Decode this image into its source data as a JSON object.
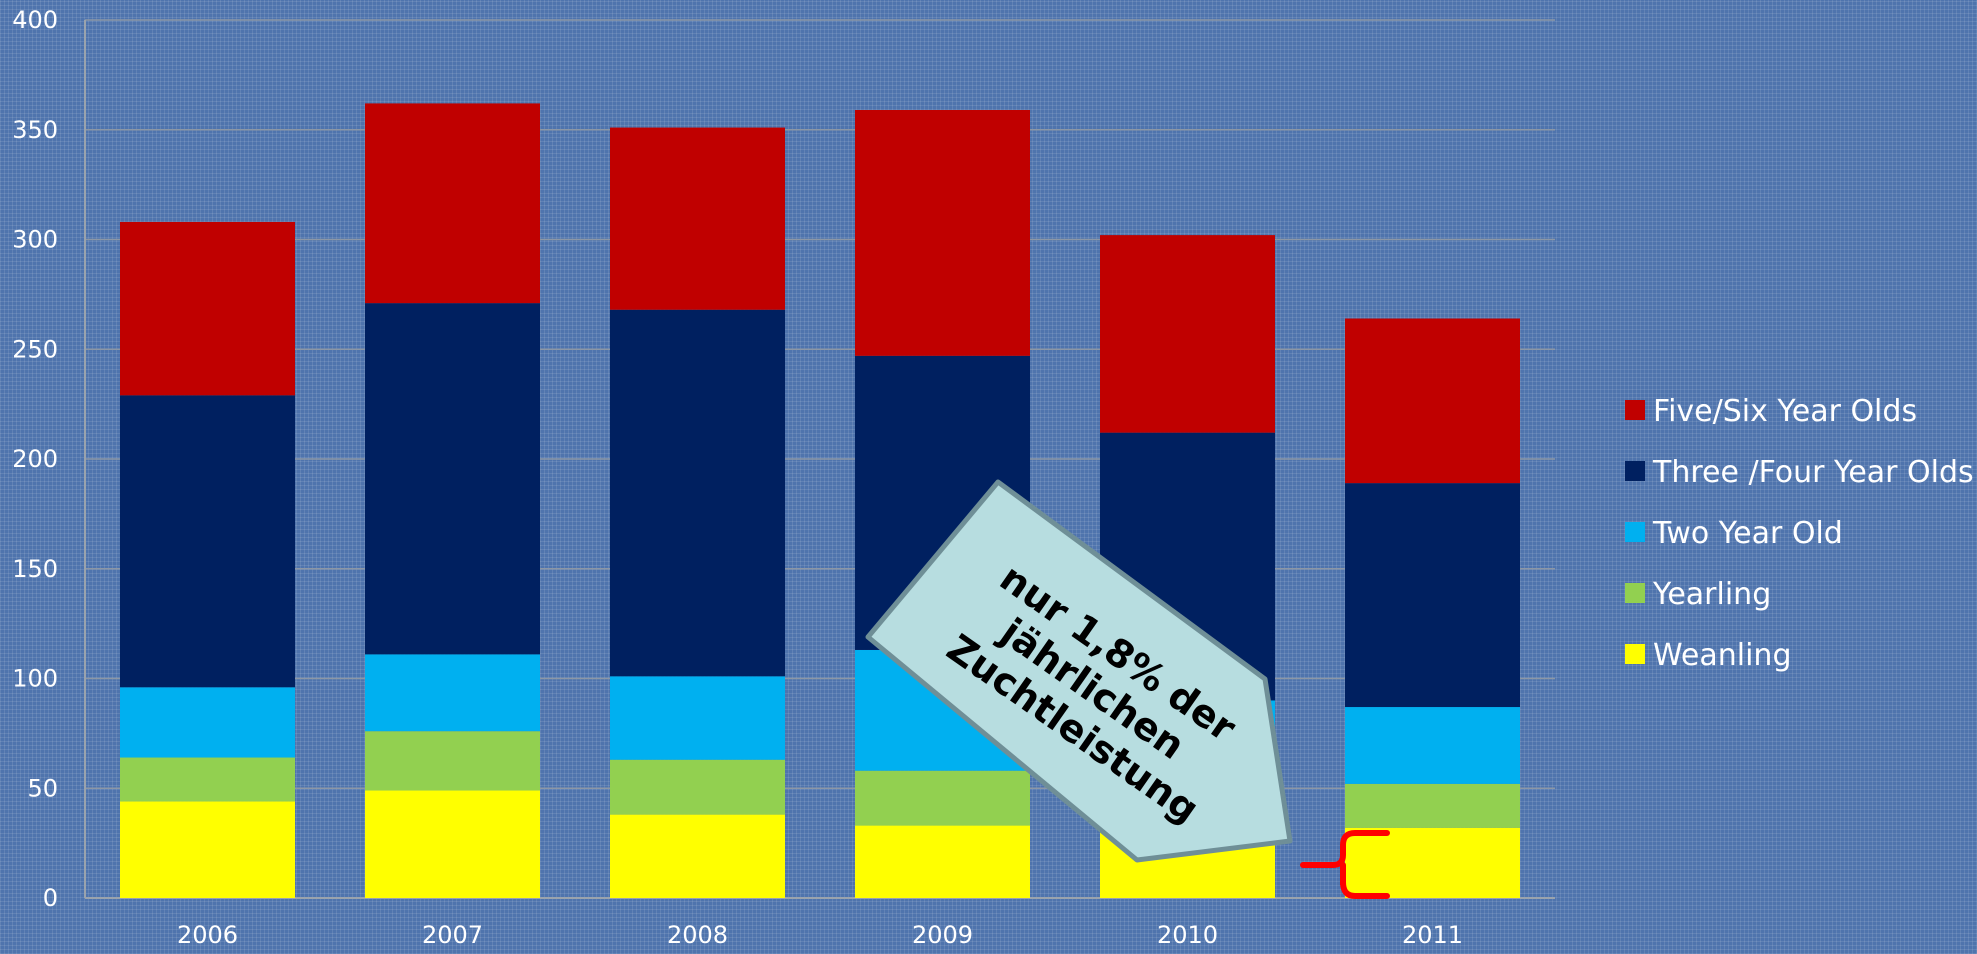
{
  "chart_data": {
    "type": "bar",
    "stacked": true,
    "categories": [
      "2006",
      "2007",
      "2008",
      "2009",
      "2010",
      "2011"
    ],
    "series": [
      {
        "name": "Weanling",
        "color": "#ffff00",
        "values": [
          44,
          49,
          38,
          33,
          31,
          32
        ]
      },
      {
        "name": "Yearling",
        "color": "#92d050",
        "values": [
          20,
          27,
          25,
          25,
          22,
          20
        ]
      },
      {
        "name": "Two Year Old",
        "color": "#00b0f0",
        "values": [
          32,
          35,
          38,
          55,
          37,
          35
        ]
      },
      {
        "name": "Three /Four Year Olds",
        "color": "#002060",
        "values": [
          133,
          160,
          167,
          134,
          122,
          102
        ]
      },
      {
        "name": "Five/Six Year Olds",
        "color": "#c00000",
        "values": [
          79,
          91,
          83,
          112,
          90,
          75
        ]
      }
    ],
    "ylim": [
      0,
      400
    ],
    "yticks": [
      0,
      50,
      100,
      150,
      200,
      250,
      300,
      350,
      400
    ],
    "grid": true,
    "legend_position": "right",
    "legend_order": [
      "Five/Six Year Olds",
      "Three /Four Year Olds",
      "Two Year Old",
      "Yearling",
      "Weanling"
    ],
    "annotation": {
      "lines": [
        "nur 1,8% der",
        "jährlichen",
        "Zuchtleistung"
      ],
      "fill": "#b7dde0",
      "stroke": "#6f8f97",
      "bracket_color": "#ff0000"
    }
  }
}
